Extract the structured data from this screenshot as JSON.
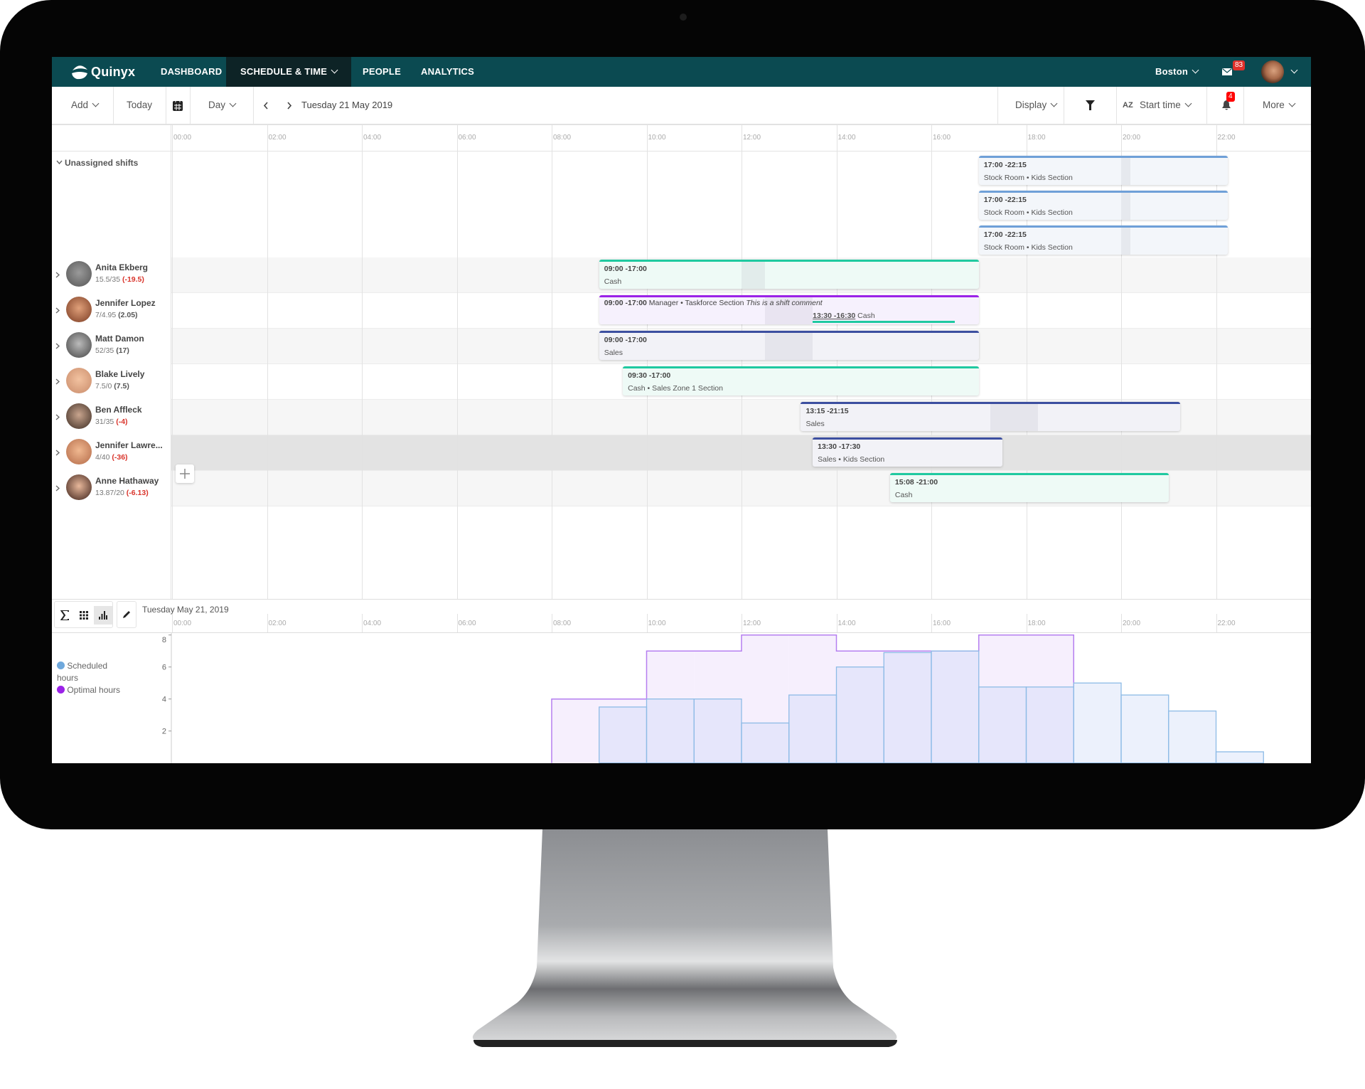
{
  "nav": {
    "brand": "Quinyx",
    "items": [
      "DASHBOARD",
      "SCHEDULE & TIME",
      "PEOPLE",
      "ANALYTICS"
    ],
    "active": "SCHEDULE & TIME",
    "location": "Boston",
    "messages_badge": "83",
    "color": "#0b4a51"
  },
  "toolbar": {
    "add": "Add",
    "today": "Today",
    "view": "Day",
    "date": "Tuesday 21 May 2019",
    "display": "Display",
    "sort_icon": "AZ",
    "sort": "Start time",
    "notifications_badge": "4",
    "more": "More"
  },
  "timeline": {
    "ticks": [
      "00:00",
      "02:00",
      "04:00",
      "06:00",
      "08:00",
      "10:00",
      "12:00",
      "14:00",
      "16:00",
      "18:00",
      "20:00",
      "22:00"
    ]
  },
  "unassigned": {
    "label": "Unassigned shifts",
    "shifts": [
      {
        "time": "17:00 -22:15",
        "desc": "Stock Room • Kids Section",
        "start": 17,
        "end": 22.25,
        "break": [
          20,
          20.2
        ],
        "color": "#6fa0d8"
      },
      {
        "time": "17:00 -22:15",
        "desc": "Stock Room • Kids Section",
        "start": 17,
        "end": 22.25,
        "break": [
          20,
          20.2
        ],
        "color": "#6fa0d8"
      },
      {
        "time": "17:00 -22:15",
        "desc": "Stock Room • Kids Section",
        "start": 17,
        "end": 22.25,
        "break": [
          20,
          20.2
        ],
        "color": "#6fa0d8"
      }
    ]
  },
  "people": [
    {
      "name": "Anita Ekberg",
      "hours": "15.5/35",
      "diff": "(-19.5)",
      "negative": true,
      "shift": {
        "time": "09:00 -17:00",
        "desc": "Cash",
        "start": 9,
        "end": 17,
        "break": [
          12,
          12.5
        ],
        "color": "#1fc9a0",
        "bg": "#eefaf6"
      }
    },
    {
      "name": "Jennifer Lopez",
      "hours": "7/4.95",
      "diff": "(2.05)",
      "negative": false,
      "shift": {
        "time": "09:00 -17:00",
        "desc": "Manager • Taskforce Section",
        "comment": "This is a shift comment",
        "start": 9,
        "end": 17,
        "break": [
          12.5,
          13.5
        ],
        "color": "#9b22e8",
        "bg": "#f6f1fd",
        "sub": {
          "time": "13:30 -16:30",
          "desc": "Cash",
          "start": 13.5,
          "end": 16.5,
          "color": "#1fc9a0"
        }
      }
    },
    {
      "name": "Matt Damon",
      "hours": "52/35",
      "diff": "(17)",
      "negative": false,
      "shift": {
        "time": "09:00 -17:00",
        "desc": "Sales",
        "start": 9,
        "end": 17,
        "break": [
          12.5,
          13.5
        ],
        "color": "#3c4fa0",
        "bg": "#f2f2f7"
      }
    },
    {
      "name": "Blake Lively",
      "hours": "7.5/0",
      "diff": "(7.5)",
      "negative": false,
      "shift": {
        "time": "09:30 -17:00",
        "desc": "Cash • Sales Zone 1 Section",
        "start": 9.5,
        "end": 17,
        "color": "#1fc9a0",
        "bg": "#eefaf6"
      }
    },
    {
      "name": "Ben Affleck",
      "hours": "31/35",
      "diff": "(-4)",
      "negative": true,
      "shift": {
        "time": "13:15 -21:15",
        "desc": "Sales",
        "start": 13.25,
        "end": 21.25,
        "break": [
          17.25,
          18.25
        ],
        "color": "#3c4fa0",
        "bg": "#f2f2f7"
      }
    },
    {
      "name": "Jennifer Lawre...",
      "hours": "4/40",
      "diff": "(-36)",
      "negative": true,
      "shift": {
        "time": "13:30 -17:30",
        "desc": "Sales • Kids Section",
        "start": 13.5,
        "end": 17.5,
        "color": "#3c4fa0",
        "bg": "#f2f2f7"
      }
    },
    {
      "name": "Anne Hathaway",
      "hours": "13.87/20",
      "diff": "(-6.13)",
      "negative": true,
      "shift": {
        "time": "15:08 -21:00",
        "desc": "Cash",
        "start": 15.13,
        "end": 21,
        "color": "#1fc9a0",
        "bg": "#eefaf6"
      }
    }
  ],
  "bottom": {
    "date": "Tuesday May 21, 2019",
    "tools": [
      "sigma-icon",
      "grid-icon",
      "bar-chart-icon",
      "pencil-icon"
    ]
  },
  "chart_data": {
    "type": "bar",
    "x_unit": "hour of day",
    "x_ticks": [
      "00:00",
      "02:00",
      "04:00",
      "06:00",
      "08:00",
      "10:00",
      "12:00",
      "14:00",
      "16:00",
      "18:00",
      "20:00",
      "22:00"
    ],
    "y_ticks": [
      "2",
      "4",
      "6",
      "8"
    ],
    "ylim": [
      0,
      8
    ],
    "legend_position": "left",
    "series": [
      {
        "name": "Scheduled hours",
        "color": "#6fa8dc",
        "data": [
          [
            9,
            3.5
          ],
          [
            10,
            4
          ],
          [
            11,
            4
          ],
          [
            12,
            2.5
          ],
          [
            13,
            4.25
          ],
          [
            14,
            6
          ],
          [
            15,
            6.9
          ],
          [
            16,
            7
          ],
          [
            17,
            4.75
          ],
          [
            18,
            4.75
          ],
          [
            19,
            5
          ],
          [
            20,
            4.25
          ],
          [
            21,
            3.25
          ],
          [
            22,
            0.7
          ]
        ]
      },
      {
        "name": "Optimal hours",
        "color": "#9b22e8",
        "data": [
          [
            8,
            4
          ],
          [
            9,
            4
          ],
          [
            10,
            7
          ],
          [
            11,
            7
          ],
          [
            12,
            8
          ],
          [
            13,
            8
          ],
          [
            14,
            7
          ],
          [
            15,
            7
          ],
          [
            16,
            7
          ],
          [
            17,
            8
          ],
          [
            18,
            8
          ]
        ]
      }
    ]
  }
}
